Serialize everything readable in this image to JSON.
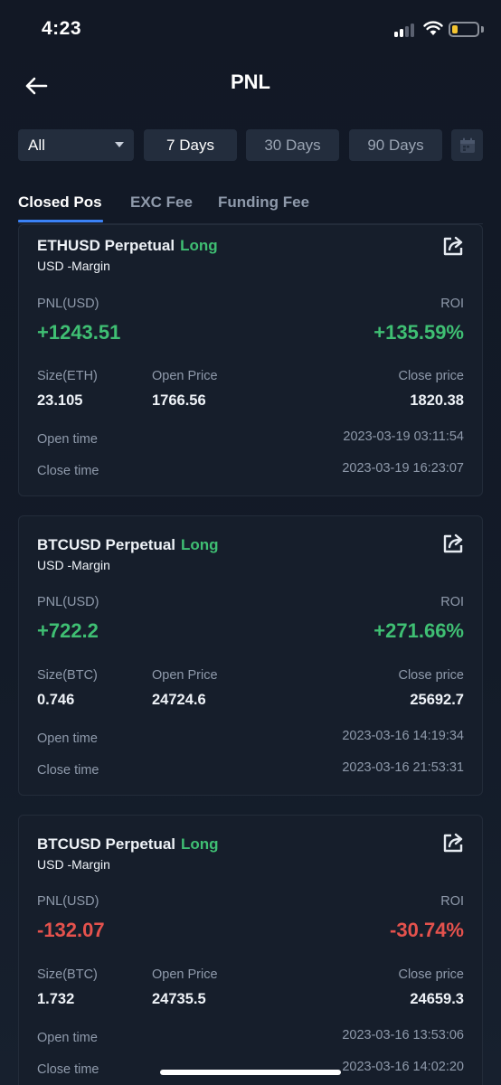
{
  "status_bar": {
    "time": "4:23"
  },
  "nav": {
    "title": "PNL"
  },
  "filters": {
    "select_value": "All",
    "days": [
      "7 Days",
      "30 Days",
      "90 Days"
    ]
  },
  "tabs": [
    "Closed Pos",
    "EXC Fee",
    "Funding Fee"
  ],
  "labels": {
    "pnl": "PNL(USD)",
    "roi": "ROI",
    "open_price": "Open Price",
    "close_price": "Close price",
    "open_time": "Open time",
    "close_time": "Close time"
  },
  "positions": [
    {
      "symbol": "ETHUSD Perpetual",
      "side": "Long",
      "margin": "USD -Margin",
      "pnl": "+1243.51",
      "roi": "+135.59%",
      "size_label": "Size(ETH)",
      "size": "23.105",
      "open_price": "1766.56",
      "close_price": "1820.38",
      "open_time": "2023-03-19 03:11:54",
      "close_time": "2023-03-19 16:23:07"
    },
    {
      "symbol": "BTCUSD Perpetual",
      "side": "Long",
      "margin": "USD -Margin",
      "pnl": "+722.2",
      "roi": "+271.66%",
      "size_label": "Size(BTC)",
      "size": "0.746",
      "open_price": "24724.6",
      "close_price": "25692.7",
      "open_time": "2023-03-16 14:19:34",
      "close_time": "2023-03-16 21:53:31"
    },
    {
      "symbol": "BTCUSD Perpetual",
      "side": "Long",
      "margin": "USD -Margin",
      "pnl": "-132.07",
      "roi": "-30.74%",
      "size_label": "Size(BTC)",
      "size": "1.732",
      "open_price": "24735.5",
      "close_price": "24659.3",
      "open_time": "2023-03-16 13:53:06",
      "close_time": "2023-03-16 14:02:20"
    }
  ],
  "colors": {
    "profit": "#3fbf73",
    "loss": "#e5524d",
    "accent": "#3b82f6"
  },
  "icons": [
    "back-arrow-icon",
    "calendar-icon",
    "share-icon",
    "wifi-icon",
    "signal-icon",
    "battery-icon"
  ]
}
